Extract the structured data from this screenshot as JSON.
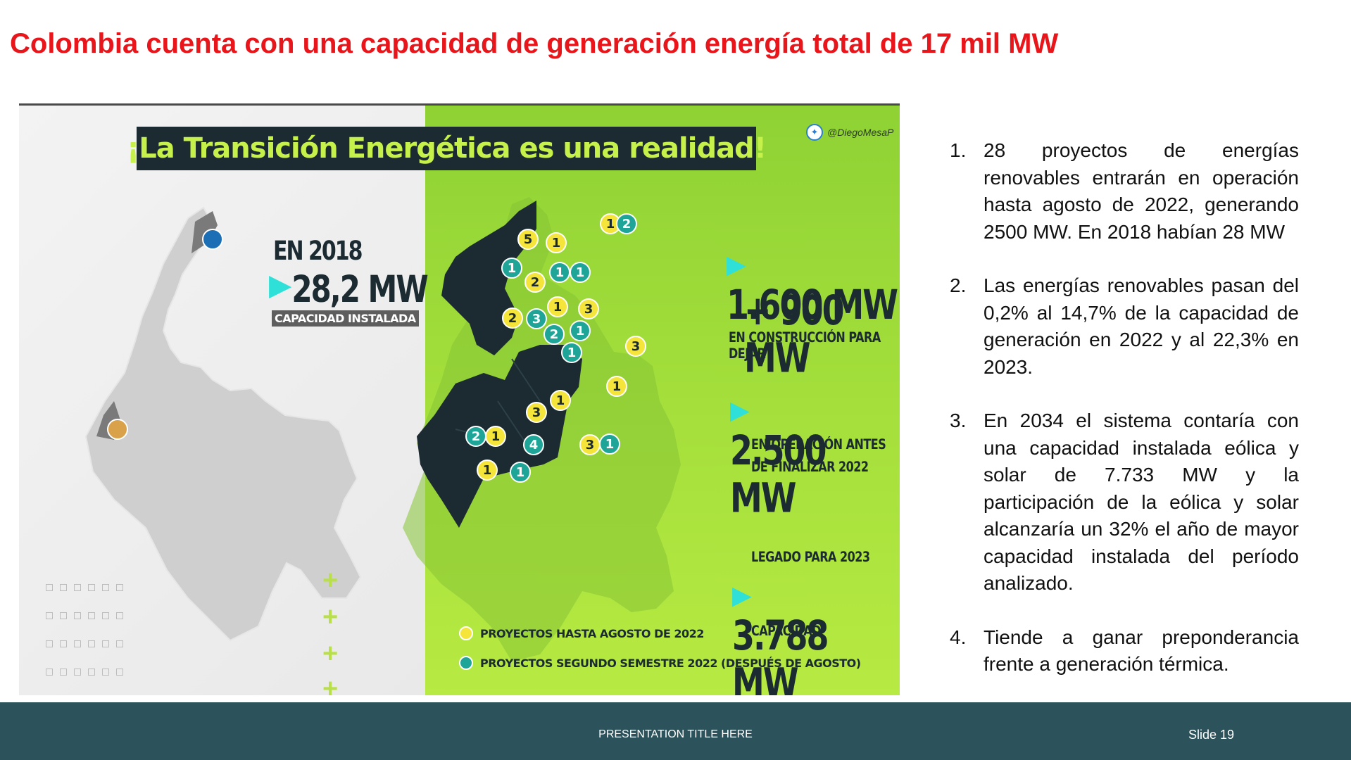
{
  "slide": {
    "title": "Colombia cuenta con una capacidad de generación energía total de 17 mil MW"
  },
  "infographic": {
    "banner": "¡La Transición Energética es una realidad!",
    "twitter_handle": "@DiegoMesaP",
    "year_label": "EN 2018",
    "installed_2018": "28,2 MW",
    "installed_caption": "CAPACIDAD INSTALADA",
    "construction_line1": "1.600 MW",
    "construction_line2": "+ 900 MW",
    "construction_caption": "EN CONSTRUCCIÓN PARA DEJAR",
    "operation_value": "2.500 MW",
    "operation_caption_1": "EN OPERACIÓN ANTES",
    "operation_caption_2": "DE FINALIZAR 2022",
    "legacy_label": "LEGADO PARA 2023",
    "legacy_value": "3.788 MW",
    "legacy_caption": "CAPACIDAD",
    "legend": [
      {
        "label": "PROYECTOS HASTA AGOSTO DE 2022",
        "color": "#f5e53a"
      },
      {
        "label": "PROYECTOS SEGUNDO SEMESTRE 2022 (DESPUÉS DE AGOSTO)",
        "color": "#1fa598"
      }
    ],
    "markers": [
      {
        "n": "5",
        "kind": "yellow"
      },
      {
        "n": "1",
        "kind": "yellow"
      },
      {
        "n": "1",
        "kind": "yellow"
      },
      {
        "n": "2",
        "kind": "teal"
      },
      {
        "n": "1",
        "kind": "teal"
      },
      {
        "n": "1",
        "kind": "teal"
      },
      {
        "n": "1",
        "kind": "teal"
      },
      {
        "n": "2",
        "kind": "yellow"
      },
      {
        "n": "1",
        "kind": "yellow"
      },
      {
        "n": "3",
        "kind": "yellow"
      },
      {
        "n": "2",
        "kind": "yellow"
      },
      {
        "n": "3",
        "kind": "teal"
      },
      {
        "n": "2",
        "kind": "teal"
      },
      {
        "n": "1",
        "kind": "teal"
      },
      {
        "n": "1",
        "kind": "teal"
      },
      {
        "n": "3",
        "kind": "yellow"
      },
      {
        "n": "1",
        "kind": "yellow"
      },
      {
        "n": "1",
        "kind": "yellow"
      },
      {
        "n": "3",
        "kind": "yellow"
      },
      {
        "n": "2",
        "kind": "teal"
      },
      {
        "n": "1",
        "kind": "yellow"
      },
      {
        "n": "4",
        "kind": "teal"
      },
      {
        "n": "3",
        "kind": "yellow"
      },
      {
        "n": "1",
        "kind": "teal"
      },
      {
        "n": "1",
        "kind": "yellow"
      },
      {
        "n": "1",
        "kind": "teal"
      }
    ]
  },
  "points": [
    {
      "num": "1.",
      "text": "28 proyectos de energías renovables entrarán en operación hasta agosto de 2022, generando 2500 MW. En 2018 habían 28 MW"
    },
    {
      "num": "2.",
      "text": "Las energías renovables pasan del 0,2% al 14,7% de la capacidad de generación en 2022 y al 22,3% en 2023."
    },
    {
      "num": "3.",
      "text": "En 2034 el sistema contaría con una capacidad instalada eólica y solar de 7.733 MW y la participación de la eólica y solar alcanzaría un 32% el año de mayor capacidad instalada del período analizado."
    },
    {
      "num": "4.",
      "text": "Tiende a ganar preponderancia frente a generación térmica."
    }
  ],
  "footer": {
    "presentation_title": "PRESENTATION TITLE HERE",
    "slide_number": "Slide 19"
  },
  "colors": {
    "title_red": "#e8161b",
    "footer_bg": "#2c525b",
    "banner_bg": "#1b2b31",
    "banner_text": "#c6f04a",
    "arrow_teal": "#2ee0d8"
  }
}
